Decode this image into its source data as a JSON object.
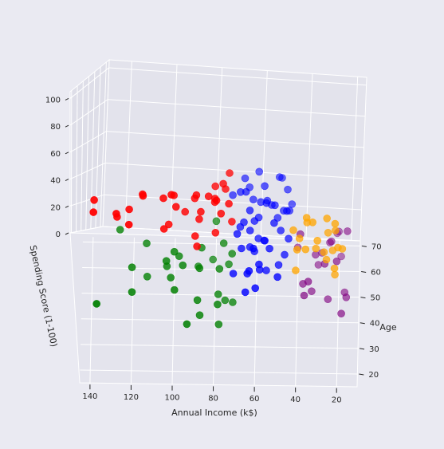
{
  "colors": {
    "figure_bg": "#eaeaf2",
    "pane": "#eaeaf2",
    "grid": "#ffffff",
    "cluster_colors": [
      "#0000ff",
      "#ff0000",
      "#008000",
      "#ffa500",
      "#800080"
    ]
  },
  "chart_data": {
    "type": "scatter",
    "projection": "3d",
    "title": "",
    "xlabel": "Age",
    "ylabel": "Annual Income (k$)",
    "zlabel": "Spending Score (1-100)",
    "x_ticks": [
      "20",
      "30",
      "40",
      "50",
      "60",
      "70"
    ],
    "y_ticks": [
      "20",
      "40",
      "60",
      "80",
      "100",
      "120",
      "140"
    ],
    "z_ticks": [
      "0",
      "20",
      "40",
      "60",
      "80",
      "100"
    ],
    "xlim": [
      15,
      72
    ],
    "ylim": [
      10,
      145
    ],
    "zlim": [
      0,
      105
    ],
    "grid": true,
    "legend": "none",
    "series": [
      {
        "color": "#0000ff",
        "points": [
          [
            50,
            60,
            48
          ],
          [
            55,
            57,
            52
          ],
          [
            62,
            61,
            42
          ],
          [
            45,
            58,
            45
          ],
          [
            40,
            55,
            52
          ],
          [
            35,
            60,
            55
          ],
          [
            30,
            63,
            47
          ],
          [
            66,
            65,
            49
          ],
          [
            58,
            54,
            48
          ],
          [
            48,
            62,
            58
          ],
          [
            52,
            50,
            55
          ],
          [
            38,
            66,
            50
          ],
          [
            25,
            59,
            46
          ],
          [
            68,
            63,
            40
          ],
          [
            44,
            47,
            52
          ],
          [
            60,
            52,
            42
          ],
          [
            33,
            70,
            42
          ],
          [
            54,
            64,
            60
          ],
          [
            42,
            50,
            60
          ],
          [
            27,
            57,
            58
          ],
          [
            63,
            48,
            55
          ],
          [
            37,
            45,
            48
          ],
          [
            50,
            67,
            44
          ],
          [
            56,
            46,
            45
          ],
          [
            46,
            55,
            42
          ],
          [
            28,
            62,
            52
          ],
          [
            65,
            58,
            55
          ],
          [
            40,
            68,
            56
          ],
          [
            53,
            43,
            50
          ],
          [
            35,
            54,
            41
          ],
          [
            60,
            67,
            50
          ],
          [
            48,
            44,
            58
          ],
          [
            24,
            48,
            55
          ],
          [
            32,
            52,
            60
          ],
          [
            67,
            47,
            48
          ],
          [
            43,
            60,
            40
          ],
          [
            51,
            54,
            58
          ],
          [
            58,
            42,
            46
          ],
          [
            39,
            43,
            55
          ],
          [
            27,
            64,
            40
          ],
          [
            45,
            62,
            50
          ],
          [
            52,
            58,
            47
          ],
          [
            57,
            55,
            59
          ],
          [
            36,
            48,
            43
          ],
          [
            63,
            71,
            43
          ],
          [
            31,
            57,
            48
          ],
          [
            47,
            65,
            52
          ],
          [
            60,
            44,
            52
          ],
          [
            41,
            62,
            46
          ],
          [
            55,
            49,
            42
          ]
        ]
      },
      {
        "color": "#ff0000",
        "points": [
          [
            32,
            70,
            77
          ],
          [
            31,
            78,
            91
          ],
          [
            33,
            87,
            92
          ],
          [
            30,
            99,
            97
          ],
          [
            36,
            88,
            85
          ],
          [
            30,
            103,
            75
          ],
          [
            33,
            113,
            91
          ],
          [
            29,
            120,
            79
          ],
          [
            36,
            137,
            83
          ],
          [
            35,
            126,
            74
          ],
          [
            32,
            81,
            93
          ],
          [
            28,
            77,
            97
          ],
          [
            40,
            71,
            95
          ],
          [
            34,
            98,
            90
          ],
          [
            38,
            93,
            73
          ],
          [
            27,
            87,
            69
          ],
          [
            31,
            103,
            93
          ],
          [
            29,
            75,
            87
          ],
          [
            34,
            86,
            75
          ],
          [
            30,
            78,
            73
          ],
          [
            39,
            78,
            88
          ],
          [
            28,
            71,
            95
          ],
          [
            37,
            74,
            93
          ],
          [
            32,
            97,
            86
          ],
          [
            35,
            120,
            79
          ],
          [
            31,
            88,
            69
          ],
          [
            36,
            101,
            68
          ],
          [
            29,
            126,
            86
          ],
          [
            33,
            78,
            90
          ],
          [
            30,
            113,
            97
          ],
          [
            38,
            73,
            88
          ],
          [
            32,
            85,
            83
          ],
          [
            27,
            137,
            90
          ]
        ]
      },
      {
        "color": "#008000",
        "points": [
          [
            45,
            71,
            35
          ],
          [
            40,
            78,
            17
          ],
          [
            36,
            87,
            10
          ],
          [
            43,
            99,
            39
          ],
          [
            47,
            103,
            23
          ],
          [
            52,
            113,
            8
          ],
          [
            41,
            120,
            16
          ],
          [
            58,
            126,
            28
          ],
          [
            35,
            137,
            18
          ],
          [
            45,
            75,
            5
          ],
          [
            38,
            78,
            1
          ],
          [
            52,
            88,
            15
          ],
          [
            30,
            93,
            14
          ],
          [
            42,
            101,
            24
          ],
          [
            56,
            81,
            13
          ],
          [
            44,
            87,
            27
          ],
          [
            39,
            77,
            35
          ],
          [
            50,
            73,
            20
          ],
          [
            36,
            99,
            26
          ],
          [
            47,
            120,
            22
          ],
          [
            57,
            79,
            36
          ],
          [
            42,
            95,
            32
          ],
          [
            49,
            86,
            32
          ],
          [
            33,
            78,
            22
          ],
          [
            54,
            113,
            26
          ],
          [
            40,
            71,
            12
          ],
          [
            48,
            97,
            28
          ],
          [
            37,
            88,
            18
          ],
          [
            46,
            75,
            40
          ],
          [
            43,
            103,
            33
          ]
        ]
      },
      {
        "color": "#ffa500",
        "points": [
          [
            22,
            16,
            77
          ],
          [
            21,
            20,
            66
          ],
          [
            23,
            25,
            73
          ],
          [
            20,
            19,
            92
          ],
          [
            25,
            29,
            72
          ],
          [
            24,
            34,
            73
          ],
          [
            22,
            28,
            82
          ],
          [
            20,
            18,
            81
          ],
          [
            27,
            37,
            75
          ],
          [
            23,
            39,
            61
          ],
          [
            26,
            33,
            87
          ],
          [
            21,
            23,
            98
          ],
          [
            24,
            20,
            57
          ],
          [
            19,
            19,
            98
          ],
          [
            29,
            40,
            77
          ],
          [
            23,
            33,
            95
          ],
          [
            25,
            24,
            65
          ],
          [
            22,
            38,
            76
          ],
          [
            20,
            30,
            97
          ],
          [
            27,
            23,
            79
          ],
          [
            28,
            21,
            66
          ]
        ]
      },
      {
        "color": "#800080",
        "points": [
          [
            45,
            16,
            8
          ],
          [
            50,
            17,
            3
          ],
          [
            35,
            18,
            14
          ],
          [
            64,
            19,
            3
          ],
          [
            67,
            20,
            14
          ],
          [
            46,
            25,
            5
          ],
          [
            54,
            23,
            29
          ],
          [
            60,
            30,
            4
          ],
          [
            58,
            28,
            15
          ],
          [
            49,
            33,
            5
          ],
          [
            40,
            34,
            26
          ],
          [
            47,
            37,
            13
          ],
          [
            53,
            38,
            35
          ],
          [
            63,
            40,
            10
          ],
          [
            42,
            20,
            36
          ],
          [
            59,
            24,
            20
          ],
          [
            70,
            21,
            8
          ],
          [
            37,
            36,
            22
          ],
          [
            52,
            15,
            39
          ],
          [
            56,
            31,
            17
          ],
          [
            44,
            26,
            31
          ]
        ]
      }
    ]
  }
}
